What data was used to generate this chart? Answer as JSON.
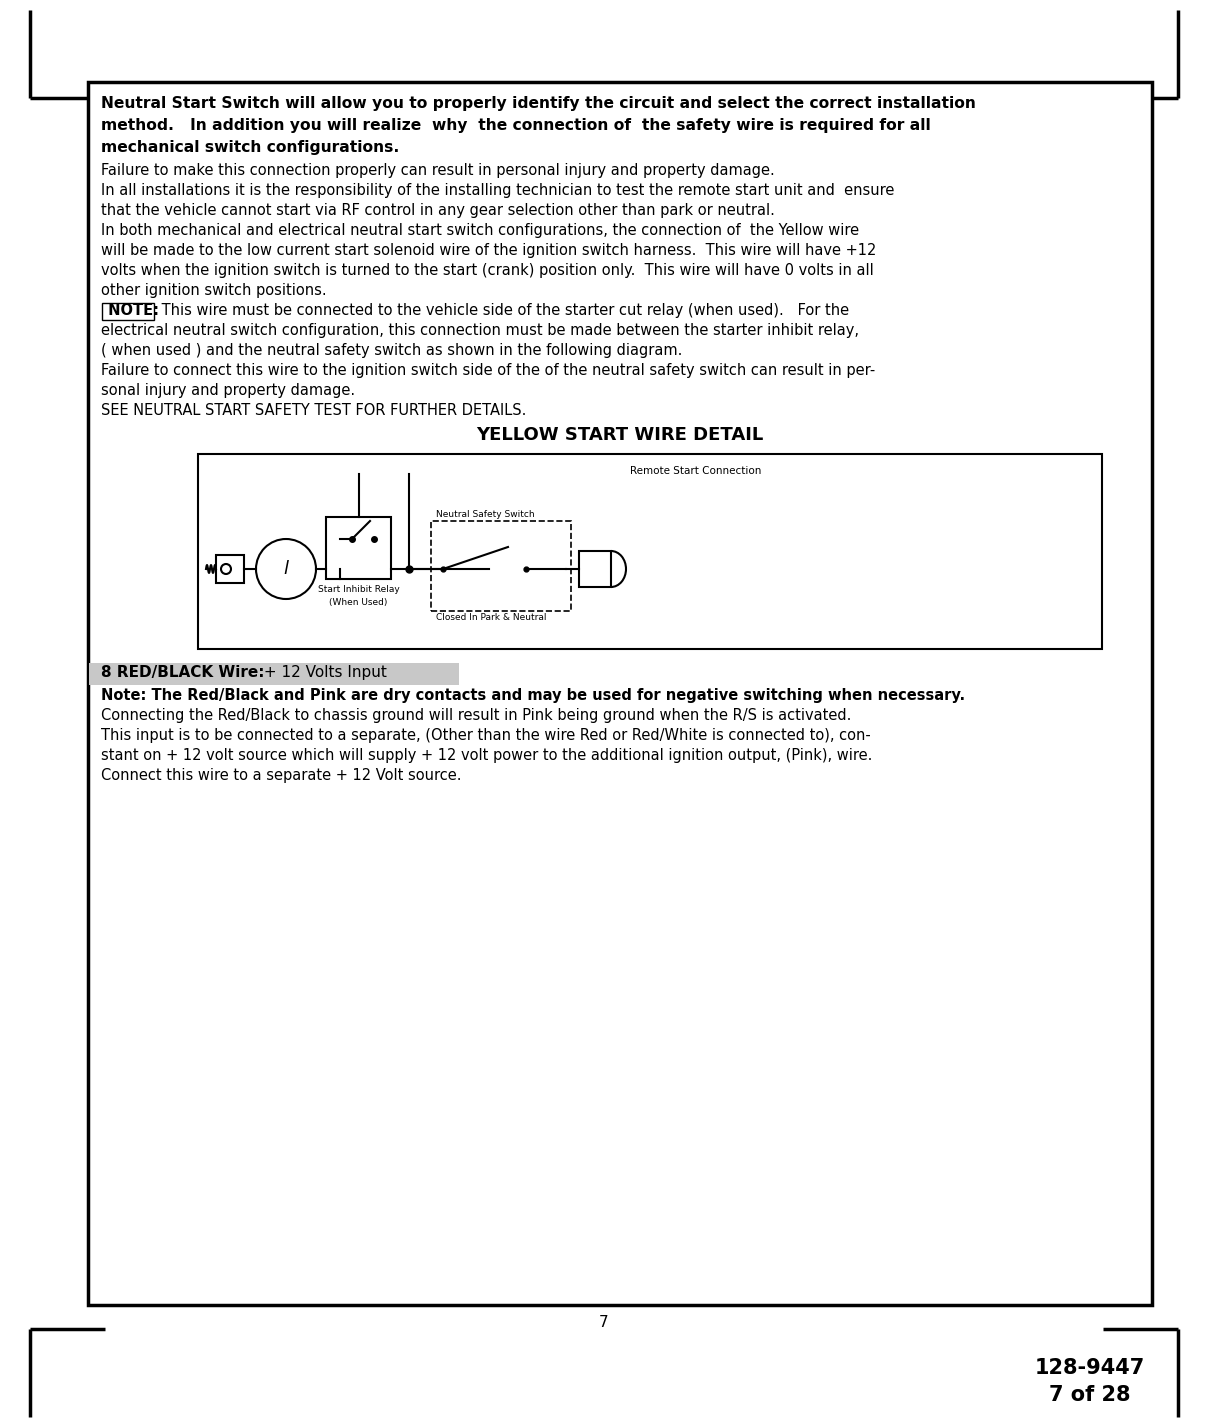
{
  "page_number": "7",
  "doc_number": "128-9447",
  "doc_pages": "7 of 28",
  "bg_color": "#ffffff",
  "main_box_text_bold_lines": [
    "Neutral Start Switch will allow you to properly identify the circuit and select the correct installation",
    "method.   In addition you will realize  why  the connection of  the safety wire is required for all",
    "mechanical switch configurations."
  ],
  "main_box_text_normal_lines": [
    "Failure to make this connection properly can result in personal injury and property damage.",
    "In all installations it is the responsibility of the installing technician to test the remote start unit and  ensure",
    "that the vehicle cannot start via RF control in any gear selection other than park or neutral.",
    "In both mechanical and electrical neutral start switch configurations, the connection of  the Yellow wire",
    "will be made to the low current start solenoid wire of the ignition switch harness.  This wire will have +12",
    "volts when the ignition switch is turned to the start (crank) position only.  This wire will have 0 volts in all",
    "other ignition switch positions.",
    " NOTE:  This wire must be connected to the vehicle side of the starter cut relay (when used).   For the",
    "electrical neutral switch configuration, this connection must be made between the starter inhibit relay,",
    "( when used ) and the neutral safety switch as shown in the following diagram.",
    "Failure to connect this wire to the ignition switch side of the of the neutral safety switch can result in per-",
    "sonal injury and property damage.",
    "SEE NEUTRAL START SAFETY TEST FOR FURTHER DETAILS."
  ],
  "diagram_title": "YELLOW START WIRE DETAIL",
  "diagram_label_remote": "Remote Start Connection",
  "diagram_label_inhibit_1": "Start Inhibit Relay",
  "diagram_label_inhibit_2": "(When Used)",
  "diagram_label_neutral": "Neutral Safety Switch",
  "diagram_label_closed": "Closed In Park & Neutral",
  "section8_bold": "8 RED/BLACK Wire:",
  "section8_normal": " + 12 Volts Input",
  "section8_text_lines": [
    "Note: The Red/Black and Pink are dry contacts and may be used for negative switching when necessary.",
    "Connecting the Red/Black to chassis ground will result in Pink being ground when the R/S is activated.",
    "This input is to be connected to a separate, (Other than the wire Red or Red/White is connected to), con-",
    "stant on + 12 volt source which will supply + 12 volt power to the additional ignition output, (Pink), wire.",
    "Connect this wire to a separate + 12 Volt source."
  ]
}
